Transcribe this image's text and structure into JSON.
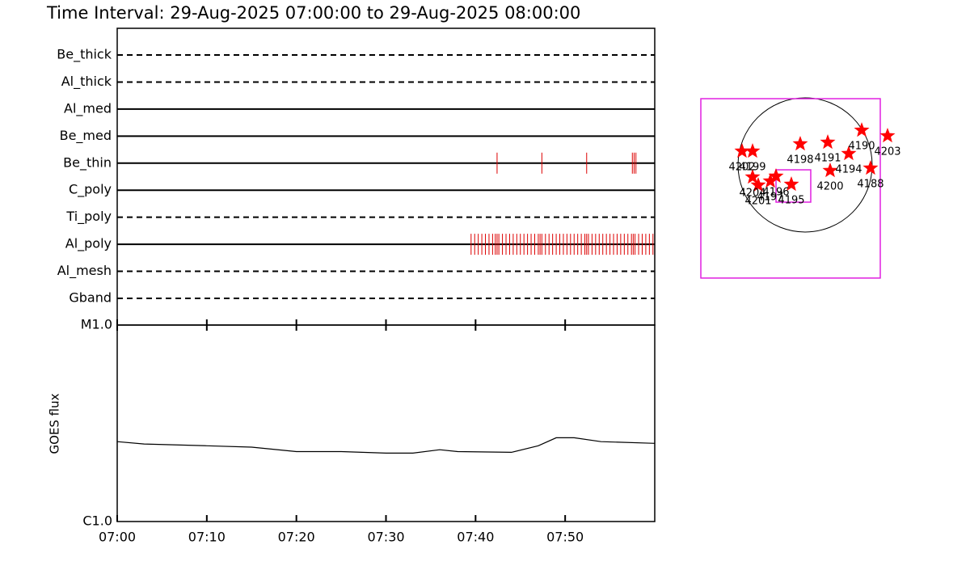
{
  "chart_data": [
    {
      "type": "event",
      "title": "Time Interval: 29-Aug-2025 07:00:00 to 29-Aug-2025 08:00:00",
      "categories": [
        "Be_thick",
        "Al_thick",
        "Al_med",
        "Be_med",
        "Be_thin",
        "C_poly",
        "Ti_poly",
        "Al_poly",
        "Al_mesh",
        "Gband"
      ],
      "styles": [
        "dashed",
        "dashed",
        "solid",
        "solid",
        "solid",
        "solid",
        "dashed",
        "solid",
        "dashed",
        "dashed"
      ],
      "events": [
        [],
        [],
        [],
        [],
        [
          42.4,
          47.4,
          52.4,
          57.5,
          57.7,
          57.9
        ],
        [],
        [],
        [
          39.5,
          39.9,
          40.3,
          40.7,
          41.1,
          41.5,
          41.9,
          42.2,
          42.4,
          42.6,
          43.0,
          43.4,
          43.8,
          44.2,
          44.6,
          45.0,
          45.4,
          45.8,
          46.2,
          46.6,
          47.0,
          47.2,
          47.4,
          47.8,
          48.2,
          48.6,
          49.0,
          49.4,
          49.8,
          50.2,
          50.6,
          51.0,
          51.4,
          51.8,
          52.2,
          52.4,
          52.6,
          53.0,
          53.4,
          53.8,
          54.2,
          54.6,
          55.0,
          55.4,
          55.8,
          56.2,
          56.6,
          57.0,
          57.4,
          57.6,
          57.8,
          58.2,
          58.6,
          59.0,
          59.4,
          59.8
        ],
        [],
        []
      ],
      "color": "#dd0000",
      "xlim": [
        0,
        60
      ]
    },
    {
      "type": "line",
      "ylabel": "GOES flux",
      "x": [
        0,
        3,
        10,
        15,
        20,
        25,
        30,
        33,
        36,
        38,
        44,
        47,
        49,
        51,
        54,
        60
      ],
      "values": [
        2.55e-06,
        2.48e-06,
        2.43e-06,
        2.39e-06,
        2.27e-06,
        2.27e-06,
        2.23e-06,
        2.23e-06,
        2.32e-06,
        2.27e-06,
        2.25e-06,
        2.43e-06,
        2.67e-06,
        2.67e-06,
        2.55e-06,
        2.5e-06
      ],
      "color": "#000000",
      "log": true,
      "xlim": [
        0,
        60
      ],
      "xticks": [
        {
          "value": 0,
          "label": "07:00"
        },
        {
          "value": 10,
          "label": "07:10"
        },
        {
          "value": 20,
          "label": "07:20"
        },
        {
          "value": 30,
          "label": "07:30"
        },
        {
          "value": 40,
          "label": "07:40"
        },
        {
          "value": 50,
          "label": "07:50"
        }
      ],
      "ylim": [
        1e-06,
        1e-05
      ],
      "yticks": [
        {
          "value": 1e-06,
          "label": "C1.0"
        },
        {
          "value": 1e-05,
          "label": "M1.0"
        }
      ]
    },
    {
      "type": "map",
      "xlim": [
        -1500,
        1500
      ],
      "ylim": [
        -1650,
        1650
      ],
      "solar_radius": 950,
      "fov": {
        "x": [
          -1477,
          1065
        ],
        "y": [
          -1603,
          939
        ]
      },
      "subfov": {
        "x": [
          -412,
          80
        ],
        "y": [
          -527,
          -69
        ]
      },
      "box_color": "#e020e0",
      "color": "#ff0000",
      "points": {
        "names": [
          "4202",
          "4199",
          "4204",
          "4201",
          "4197",
          "4196",
          "4195",
          "4198",
          "4191",
          "4190",
          "4203",
          "4194",
          "4200",
          "4188"
        ],
        "x": [
          -893,
          -744,
          -744,
          -664,
          -492,
          -412,
          -195,
          -69,
          321,
          802,
          1168,
          618,
          355,
          927
        ],
        "y": [
          195,
          195,
          -172,
          -286,
          -229,
          -160,
          -275,
          298,
          321,
          492,
          412,
          160,
          -80,
          -46
        ]
      }
    }
  ]
}
